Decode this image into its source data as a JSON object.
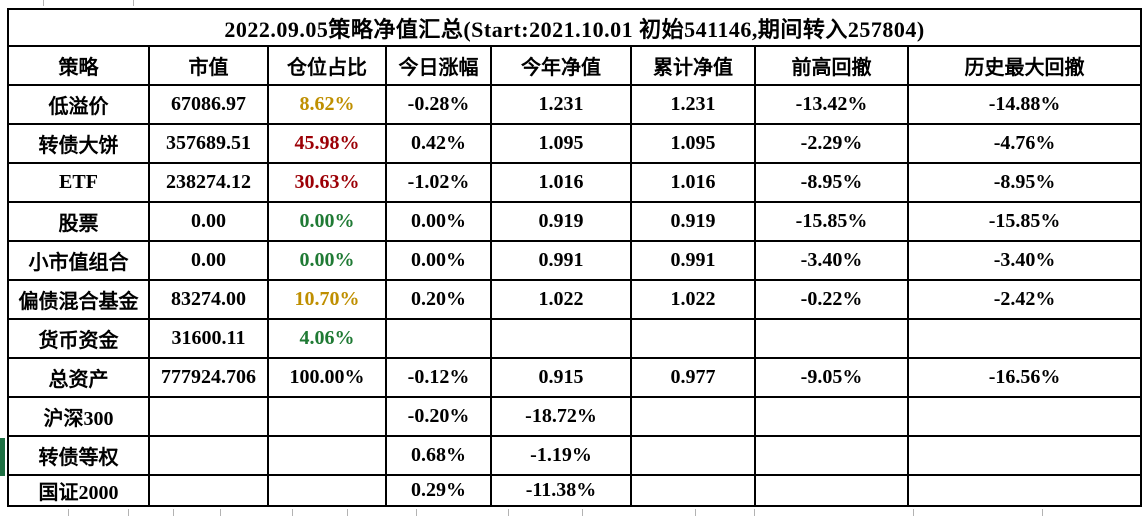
{
  "title": "2022.09.05策略净值汇总(Start:2021.10.01 初始541146,期间转入257804)",
  "table": {
    "headers": [
      "策略",
      "市值",
      "仓位占比",
      "今日涨幅",
      "今年净值",
      "累计净值",
      "前高回撤",
      "历史最大回撤"
    ],
    "rows": [
      {
        "cells": [
          "低溢价",
          "67086.97",
          "8.62%",
          "-0.28%",
          "1.231",
          "1.231",
          "-13.42%",
          "-14.88%"
        ],
        "position_fill": "yellow",
        "marker": false
      },
      {
        "cells": [
          "转债大饼",
          "357689.51",
          "45.98%",
          "0.42%",
          "1.095",
          "1.095",
          "-2.29%",
          "-4.76%"
        ],
        "position_fill": "red",
        "marker": false
      },
      {
        "cells": [
          "ETF",
          "238274.12",
          "30.63%",
          "-1.02%",
          "1.016",
          "1.016",
          "-8.95%",
          "-8.95%"
        ],
        "position_fill": "red",
        "marker": false
      },
      {
        "cells": [
          "股票",
          "0.00",
          "0.00%",
          "0.00%",
          "0.919",
          "0.919",
          "-15.85%",
          "-15.85%"
        ],
        "position_fill": "green",
        "marker": false
      },
      {
        "cells": [
          "小市值组合",
          "0.00",
          "0.00%",
          "0.00%",
          "0.991",
          "0.991",
          "-3.40%",
          "-3.40%"
        ],
        "position_fill": "green",
        "marker": false
      },
      {
        "cells": [
          "偏债混合基金",
          "83274.00",
          "10.70%",
          "0.20%",
          "1.022",
          "1.022",
          "-0.22%",
          "-2.42%"
        ],
        "position_fill": "yellow",
        "marker": false
      },
      {
        "cells": [
          "货币资金",
          "31600.11",
          "4.06%",
          "",
          "",
          "",
          "",
          ""
        ],
        "position_fill": "green",
        "marker": false
      },
      {
        "cells": [
          "总资产",
          "777924.706",
          "100.00%",
          "-0.12%",
          "0.915",
          "0.977",
          "-9.05%",
          "-16.56%"
        ],
        "position_fill": "none",
        "marker": false
      },
      {
        "cells": [
          "沪深300",
          "",
          "",
          "-0.20%",
          "-18.72%",
          "",
          "",
          ""
        ],
        "position_fill": "none",
        "marker": false
      },
      {
        "cells": [
          "转债等权",
          "",
          "",
          "0.68%",
          "-1.19%",
          "",
          "",
          ""
        ],
        "position_fill": "none",
        "marker": true
      },
      {
        "cells": [
          "国证2000",
          "",
          "",
          "0.29%",
          "-11.38%",
          "",
          "",
          ""
        ],
        "position_fill": "none",
        "marker": false
      }
    ]
  },
  "colors": {
    "yellow_bg": "#FFE596",
    "yellow_text": "#BF8F00",
    "red_bg": "#FFC7CE",
    "red_text": "#9C0006",
    "green_bg": "#C6EFCE",
    "green_text": "#1F7A34",
    "marker_green": "#1D6F42",
    "border": "#000000"
  }
}
